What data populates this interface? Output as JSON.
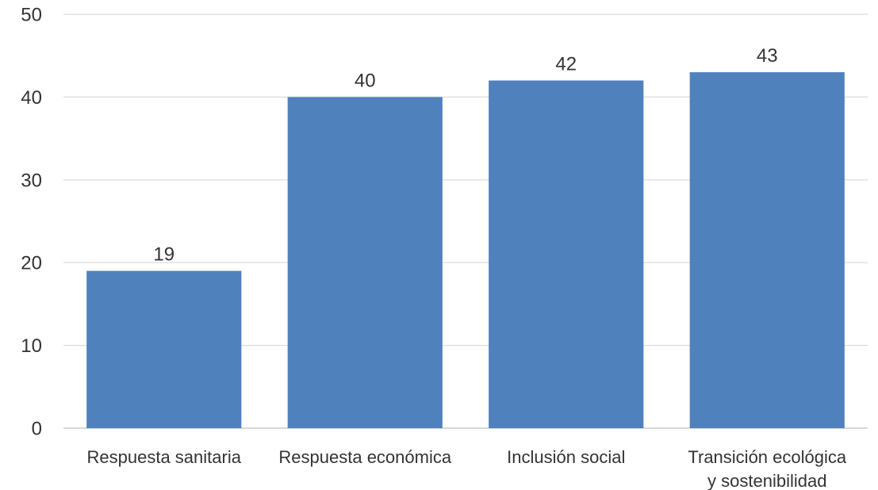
{
  "chart_data": {
    "type": "bar",
    "title": "",
    "xlabel": "",
    "ylabel": "",
    "categories": [
      [
        "Respuesta sanitaria"
      ],
      [
        "Respuesta económica"
      ],
      [
        "Inclusión social"
      ],
      [
        "Transición ecológica",
        "y sostenibilidad"
      ]
    ],
    "values": [
      19,
      40,
      42,
      43
    ],
    "data_labels": [
      "19",
      "40",
      "42",
      "43"
    ],
    "ylim": [
      0,
      50
    ],
    "yticks": [
      0,
      10,
      20,
      30,
      40,
      50
    ],
    "grid": true,
    "legend": "none",
    "colors": {
      "bar": "#4f81bd",
      "grid": "#d9d9d9",
      "text": "#333333"
    }
  }
}
